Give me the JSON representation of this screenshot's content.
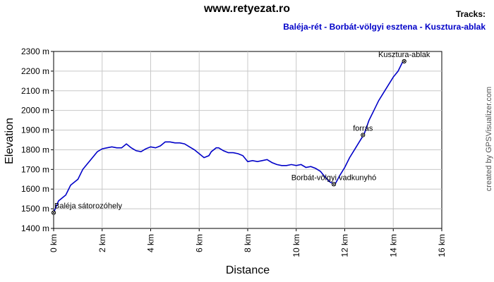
{
  "header": {
    "title": "www.retyezat.ro",
    "tracks_label": "Tracks:",
    "track_name": "Baléja-rét - Borbát-völgyi esztena - Kusztura-ablak",
    "credit": "created by GPSVisualizer.com"
  },
  "colors": {
    "track": "#0000c8",
    "grid": "#c8c8c8",
    "track_name": "#0000c8"
  },
  "chart_data": {
    "type": "line",
    "xlabel": "Distance",
    "ylabel": "Elevation",
    "xlim": [
      0,
      16
    ],
    "ylim": [
      1400,
      2300
    ],
    "x_ticks": [
      "0 km",
      "2 km",
      "4 km",
      "6 km",
      "8 km",
      "10 km",
      "12 km",
      "14 km",
      "16 km"
    ],
    "y_ticks": [
      "1400 m",
      "1500 m",
      "1600 m",
      "1700 m",
      "1800 m",
      "1900 m",
      "2000 m",
      "2100 m",
      "2200 m",
      "2300 m"
    ],
    "grid": true,
    "series": [
      {
        "name": "Baléja-rét - Borbát-völgyi esztena - Kusztura-ablak",
        "x": [
          0,
          0.1,
          0.2,
          0.3,
          0.5,
          0.7,
          0.9,
          1.0,
          1.2,
          1.4,
          1.6,
          1.8,
          2.0,
          2.2,
          2.4,
          2.6,
          2.8,
          3.0,
          3.2,
          3.4,
          3.6,
          3.8,
          4.0,
          4.2,
          4.4,
          4.6,
          4.8,
          5.0,
          5.2,
          5.4,
          5.6,
          5.8,
          6.0,
          6.2,
          6.4,
          6.5,
          6.7,
          6.8,
          7.0,
          7.2,
          7.4,
          7.6,
          7.8,
          8.0,
          8.2,
          8.4,
          8.6,
          8.8,
          9.0,
          9.2,
          9.4,
          9.6,
          9.8,
          10.0,
          10.2,
          10.4,
          10.6,
          10.8,
          11.0,
          11.2,
          11.4,
          11.6,
          11.8,
          12.0,
          12.2,
          12.4,
          12.6,
          12.8,
          13.0,
          13.2,
          13.4,
          13.6,
          13.8,
          14.0,
          14.2,
          14.4
        ],
        "y": [
          1480,
          1510,
          1540,
          1550,
          1570,
          1620,
          1640,
          1650,
          1700,
          1730,
          1760,
          1790,
          1805,
          1810,
          1815,
          1810,
          1810,
          1830,
          1810,
          1795,
          1790,
          1805,
          1815,
          1810,
          1820,
          1840,
          1840,
          1835,
          1835,
          1830,
          1815,
          1800,
          1780,
          1760,
          1770,
          1790,
          1810,
          1810,
          1795,
          1785,
          1785,
          1780,
          1770,
          1740,
          1745,
          1740,
          1745,
          1750,
          1735,
          1725,
          1720,
          1720,
          1725,
          1720,
          1725,
          1710,
          1715,
          1705,
          1690,
          1660,
          1635,
          1625,
          1670,
          1710,
          1760,
          1800,
          1840,
          1880,
          1950,
          2000,
          2050,
          2090,
          2130,
          2170,
          2200,
          2250
        ]
      }
    ],
    "waypoints": [
      {
        "label": "Baléja sátorozóhely",
        "x": 0.0,
        "y": 1480
      },
      {
        "label": "Borbát-völgyi vadkunyhó",
        "x": 11.55,
        "y": 1625
      },
      {
        "label": "forrás",
        "x": 12.75,
        "y": 1875
      },
      {
        "label": "Kusztura-ablak",
        "x": 14.45,
        "y": 2250
      }
    ]
  }
}
